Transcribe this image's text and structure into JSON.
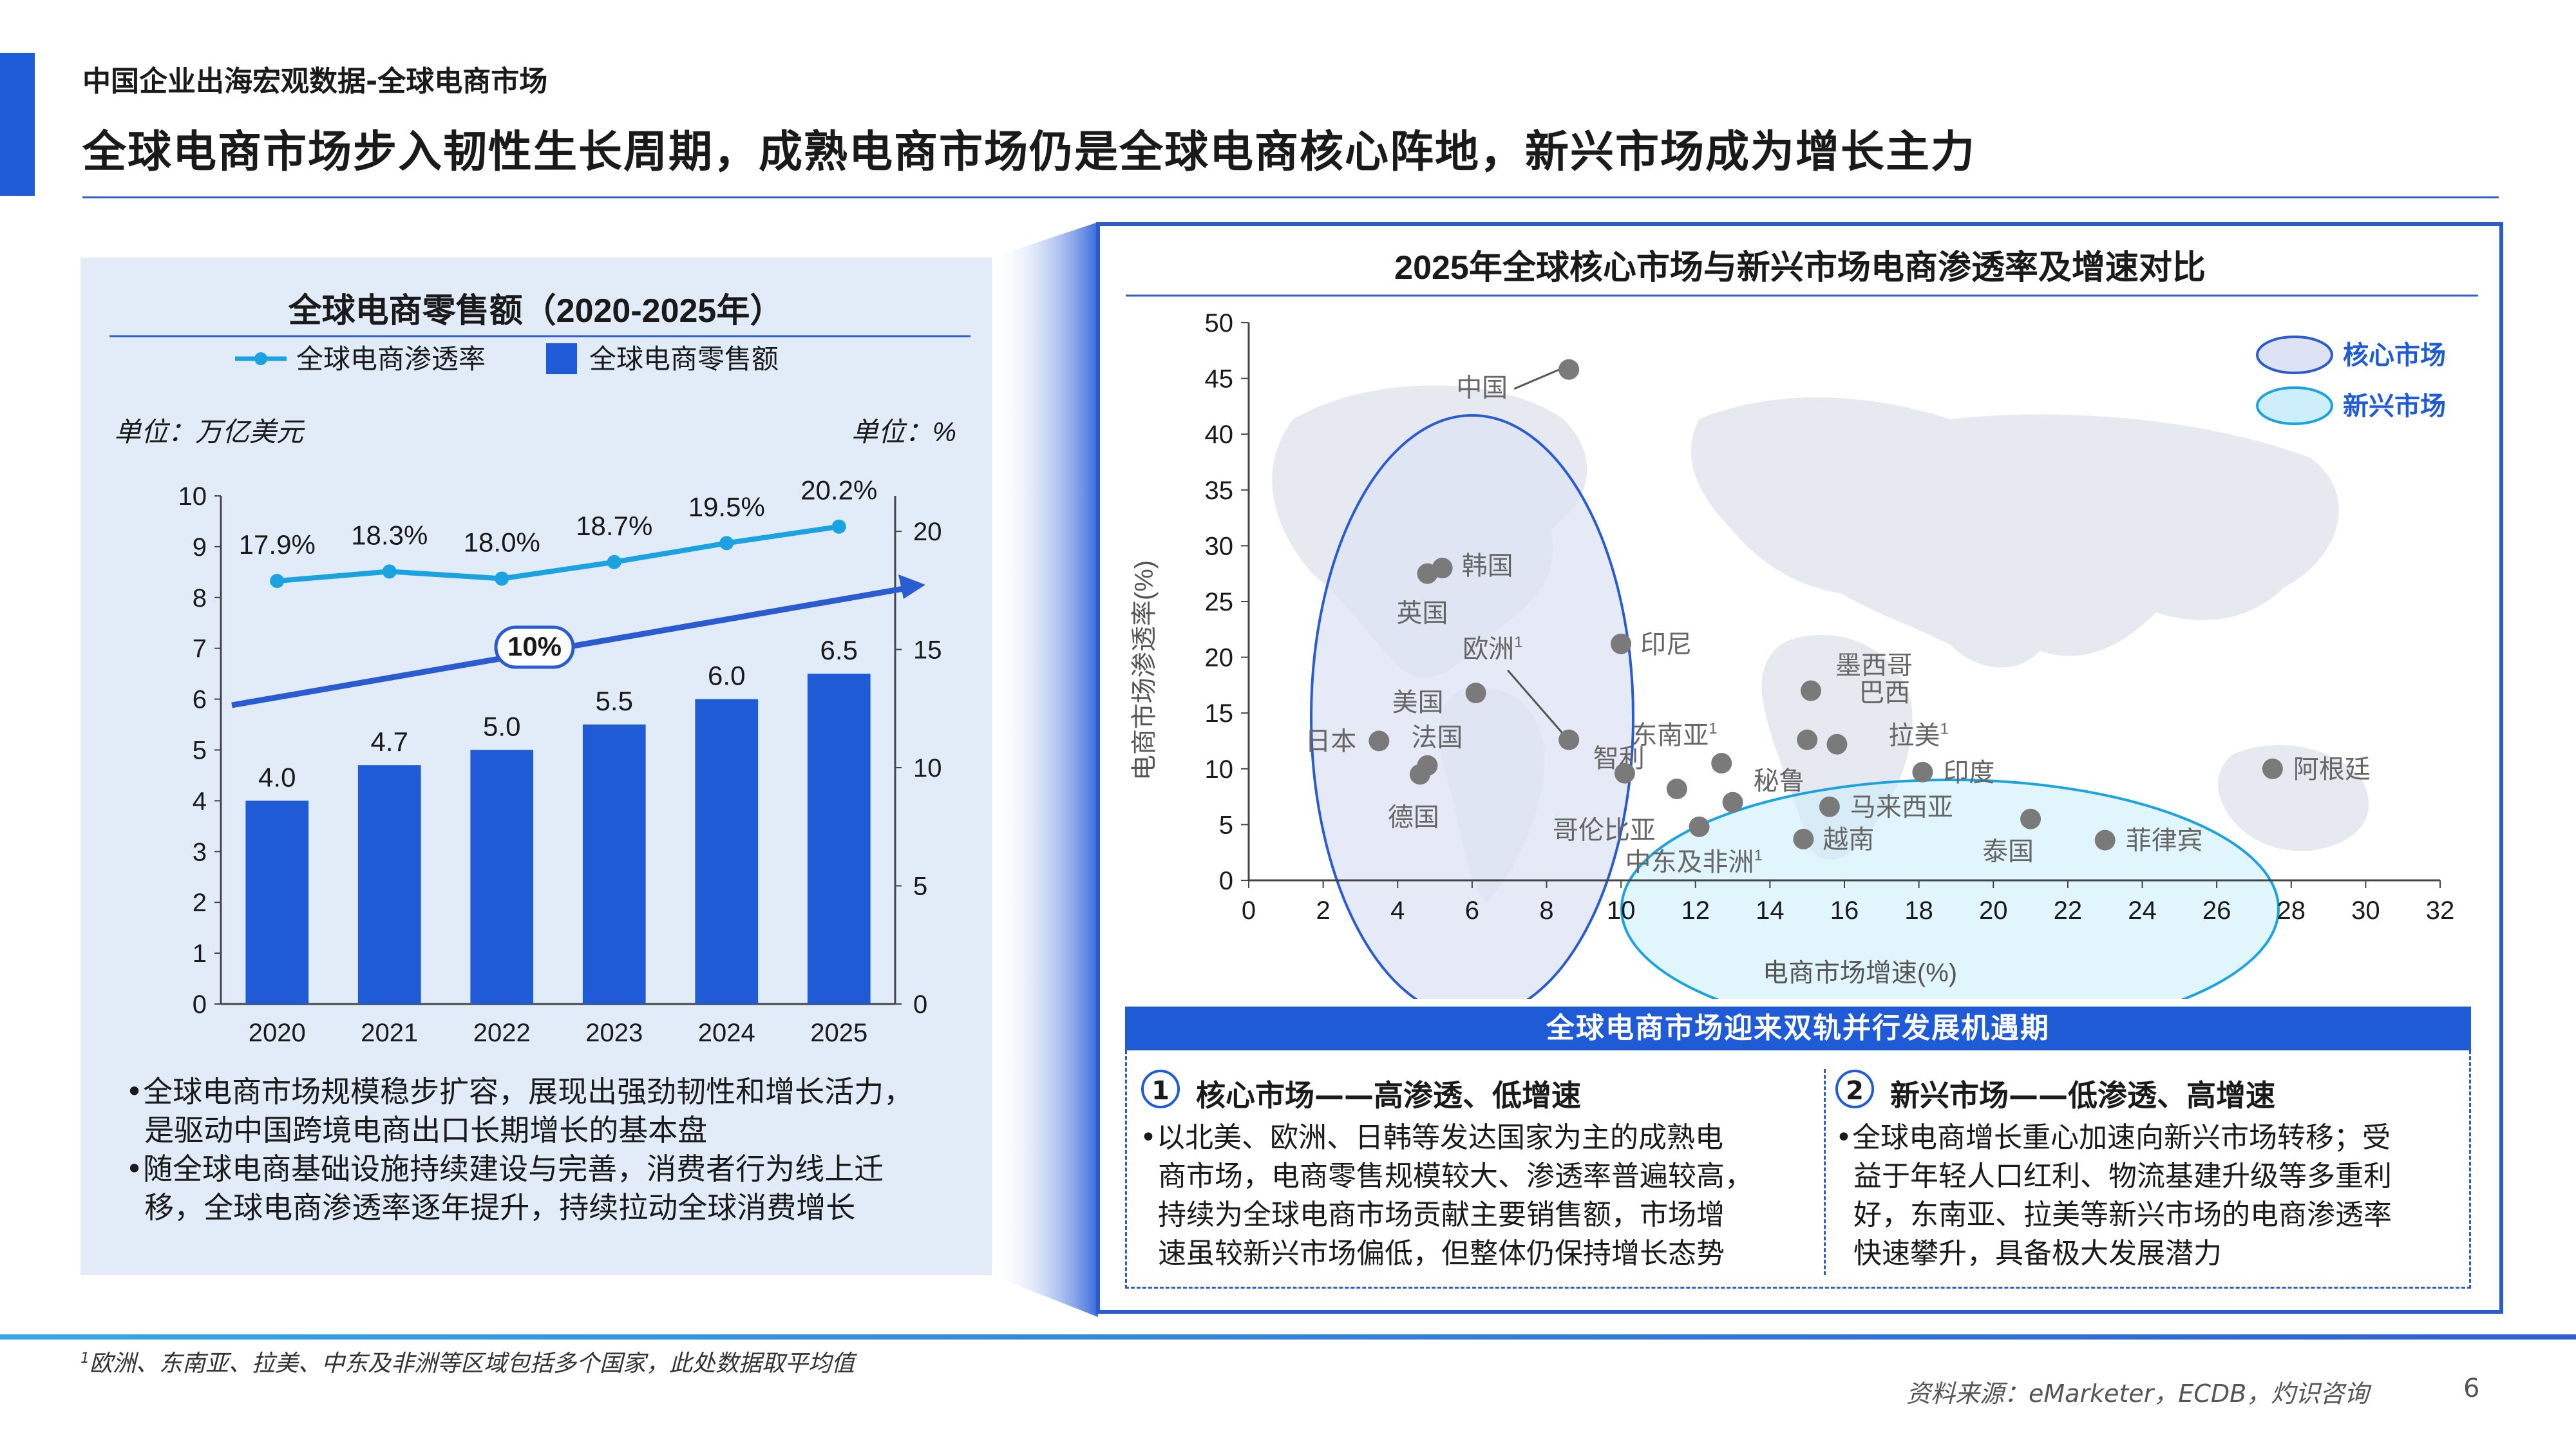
{
  "header": {
    "subtitle": "中国企业出海宏观数据-全球电商市场",
    "headline": "全球电商市场步入韧性生长周期，成熟电商市场仍是全球电商核心阵地，新兴市场成为增长主力"
  },
  "left_chart": {
    "title": "全球电商零售额（2020-2025年）",
    "legend": {
      "line": "全球电商渗透率",
      "bar": "全球电商零售额"
    },
    "unit_left": "单位：万亿美元",
    "unit_right": "单位：%",
    "cagr_label": "10%"
  },
  "left_bullets": [
    "•全球电商市场规模稳步扩容，展现出强劲韧性和增长活力，",
    "  是驱动中国跨境电商出口长期增长的基本盘",
    "•随全球电商基础设施持续建设与完善，消费者行为线上迁",
    "  移，全球电商渗透率逐年提升，持续拉动全球消费增长"
  ],
  "right_chart": {
    "title": "2025年全球核心市场与新兴市场电商渗透率及增速对比",
    "xlabel": "电商市场增速(%)",
    "ylabel": "电商市场渗透率(%)",
    "legend": {
      "core": "核心市场",
      "emerging": "新兴市场"
    }
  },
  "dual": {
    "title": "全球电商市场迎来双轨并行发展机遇期",
    "core": {
      "num": "1",
      "head": "核心市场——高渗透、低增速",
      "lines": [
        "•以北美、欧洲、日韩等发达国家为主的成熟电",
        "  商市场，电商零售规模较大、渗透率普遍较高，",
        "  持续为全球电商市场贡献主要销售额，市场增",
        "  速虽较新兴市场偏低，但整体仍保持增长态势"
      ]
    },
    "emerging": {
      "num": "2",
      "head": "新兴市场——低渗透、高增速",
      "lines": [
        "•全球电商增长重心加速向新兴市场转移；受",
        "  益于年轻人口红利、物流基建升级等多重利",
        "  好，东南亚、拉美等新兴市场的电商渗透率",
        "  快速攀升，具备极大发展潜力"
      ]
    }
  },
  "footer": {
    "footnote": "欧洲、东南亚、拉美、中东及非洲等区域包括多个国家，此处数据取平均值",
    "footnote_mark": "1",
    "source": "资料来源：eMarketer，ECDB，灼识咨询",
    "page": "6"
  },
  "colors": {
    "bar": "#1f5bd6",
    "line": "#1aa3e0",
    "core_fill": "#dfe5f6",
    "emerging_fill": "#d6f0fb",
    "point": "#7a7a7a"
  },
  "chart_data": [
    {
      "type": "bar",
      "categories": [
        "2020",
        "2021",
        "2022",
        "2023",
        "2024",
        "2025"
      ],
      "series": [
        {
          "name": "全球电商零售额",
          "axis": "left",
          "values": [
            4.0,
            4.7,
            5.0,
            5.5,
            6.0,
            6.5
          ],
          "labels": [
            "4.0",
            "4.7",
            "5.0",
            "5.5",
            "6.0",
            "6.5"
          ]
        },
        {
          "name": "全球电商渗透率",
          "axis": "right",
          "type": "line",
          "values": [
            17.9,
            18.3,
            18.0,
            18.7,
            19.5,
            20.2
          ],
          "labels": [
            "17.9%",
            "18.3%",
            "18.0%",
            "18.7%",
            "19.5%",
            "20.2%"
          ]
        }
      ],
      "ylim_left": [
        0,
        10
      ],
      "yticks_left": [
        "0",
        "1",
        "2",
        "3",
        "4",
        "5",
        "6",
        "7",
        "8",
        "9",
        "10"
      ],
      "ylim_right": [
        0,
        21.5
      ],
      "yticks_right": [
        "0",
        "5",
        "10",
        "15",
        "20"
      ],
      "legend": "top"
    },
    {
      "type": "scatter",
      "xlim": [
        0,
        32
      ],
      "ylim": [
        0,
        50
      ],
      "xticks": [
        "0",
        "2",
        "4",
        "6",
        "8",
        "10",
        "12",
        "14",
        "16",
        "18",
        "20",
        "22",
        "24",
        "26",
        "28",
        "30",
        "32"
      ],
      "yticks": [
        "0",
        "5",
        "10",
        "15",
        "20",
        "25",
        "30",
        "35",
        "40",
        "45",
        "50"
      ],
      "groups": {
        "core": "核心市场",
        "emerging": "新兴市场"
      },
      "points": [
        {
          "label": "中国",
          "x": 8.6,
          "y": 45.8,
          "group": "core"
        },
        {
          "label": "韩国",
          "x": 5.2,
          "y": 28.0,
          "group": "core"
        },
        {
          "label": "英国",
          "x": 4.8,
          "y": 27.5,
          "group": "core"
        },
        {
          "label": "美国",
          "x": 6.1,
          "y": 16.8,
          "group": "core"
        },
        {
          "label": "欧洲",
          "sup": "1",
          "x": 8.6,
          "y": 12.6,
          "group": "core"
        },
        {
          "label": "日本",
          "x": 3.5,
          "y": 12.5,
          "group": "core"
        },
        {
          "label": "法国",
          "x": 4.8,
          "y": 10.3,
          "group": "core"
        },
        {
          "label": "德国",
          "x": 4.6,
          "y": 9.5,
          "group": "core"
        },
        {
          "label": "印尼",
          "x": 10.0,
          "y": 21.2,
          "group": "emerging"
        },
        {
          "label": "墨西哥",
          "x": 15.1,
          "y": 17.0,
          "group": "emerging"
        },
        {
          "label": "巴西",
          "x": 15.0,
          "y": 12.6,
          "group": "emerging"
        },
        {
          "label": "东南亚",
          "sup": "1",
          "x": 12.7,
          "y": 10.5,
          "group": "emerging"
        },
        {
          "label": "拉美",
          "sup": "1",
          "x": 15.8,
          "y": 12.2,
          "group": "emerging"
        },
        {
          "label": "智利",
          "x": 11.5,
          "y": 8.2,
          "group": "emerging"
        },
        {
          "label": "秘鲁",
          "x": 13.0,
          "y": 7.0,
          "group": "emerging"
        },
        {
          "label": "哥伦比亚",
          "x": 10.1,
          "y": 9.6,
          "group": "emerging"
        },
        {
          "label": "中东及非洲",
          "sup": "1",
          "x": 12.1,
          "y": 4.8,
          "group": "emerging"
        },
        {
          "label": "印度",
          "x": 18.1,
          "y": 9.7,
          "group": "emerging"
        },
        {
          "label": "马来西亚",
          "x": 15.6,
          "y": 6.6,
          "group": "emerging"
        },
        {
          "label": "越南",
          "x": 14.9,
          "y": 3.7,
          "group": "emerging"
        },
        {
          "label": "泰国",
          "x": 21.0,
          "y": 5.5,
          "group": "emerging"
        },
        {
          "label": "菲律宾",
          "x": 23.0,
          "y": 3.6,
          "group": "emerging"
        },
        {
          "label": "阿根廷",
          "x": 27.5,
          "y": 10.0,
          "group": "emerging"
        }
      ]
    }
  ]
}
